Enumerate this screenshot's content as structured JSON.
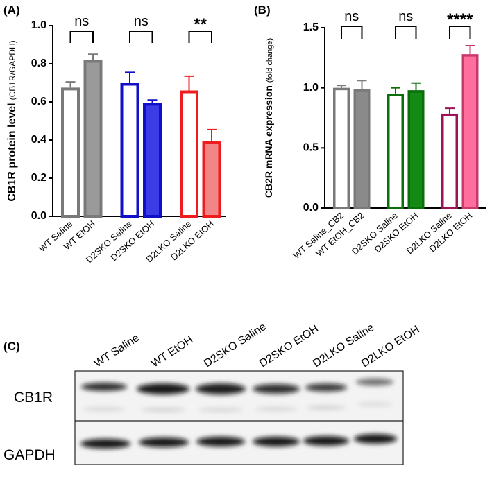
{
  "chart_data": [
    {
      "type": "bar",
      "panel_label": "(A)",
      "y_title": "CB1R protein level",
      "y_title_unit": "(CB1R/GAPDH)",
      "categories": [
        "WT Saline",
        "WT EtOH",
        "D2SKO Saline",
        "D2SKO EtOH",
        "D2LKO Saline",
        "D2LKO EtOH"
      ],
      "values": [
        0.675,
        0.82,
        0.7,
        0.595,
        0.66,
        0.395
      ],
      "errors": [
        0.03,
        0.03,
        0.055,
        0.015,
        0.075,
        0.06
      ],
      "colors": [
        "#7a7a7a",
        "#7a7a7a",
        "#1010c8",
        "#1010c8",
        "#ee1c1c",
        "#ee1c1c"
      ],
      "fill_colors": [
        "#ffffff",
        "#9a9a9a",
        "#ffffff",
        "#3c3ce6",
        "#ffffff",
        "#f28585"
      ],
      "ylim": [
        0,
        1.0
      ],
      "yticks": [
        {
          "value": 0,
          "label": "0.0"
        },
        0.2,
        0.4,
        0.6,
        0.8,
        {
          "value": 1,
          "label": "1.0"
        }
      ],
      "annotations": [
        "ns",
        "ns",
        "**"
      ]
    },
    {
      "type": "bar",
      "panel_label": "(B)",
      "y_title": "CB2R mRNA expression",
      "y_title_unit": "(fold change)",
      "categories": [
        "WT Saline_CB2",
        "WT EtOH_CB2",
        "D2SKO Saline",
        "D2SKO EtOH",
        "D2LKO Saline",
        "D2LKO EtOH"
      ],
      "values": [
        1.0,
        0.99,
        0.95,
        0.98,
        0.785,
        1.28
      ],
      "errors": [
        0.02,
        0.07,
        0.05,
        0.06,
        0.045,
        0.07
      ],
      "colors": [
        "#7a7a7a",
        "#7a7a7a",
        "#0a6e0a",
        "#0a6e0a",
        "#9a1456",
        "#c83a6e"
      ],
      "fill_colors": [
        "#ffffff",
        "#8a8a8a",
        "#ffffff",
        "#138a13",
        "#ffffff",
        "#ff6e9c"
      ],
      "ylim": [
        0,
        1.5
      ],
      "yticks": [
        {
          "value": 0,
          "label": "0.0"
        },
        0.5,
        {
          "value": 1,
          "label": "1.0"
        },
        1.5
      ],
      "annotations": [
        "ns",
        "ns",
        "****"
      ]
    }
  ],
  "blot": {
    "panel_label": "(C)",
    "lanes": [
      "WT Saline",
      "WT EtOH",
      "D2SKO Saline",
      "D2SKO EtOH",
      "D2LKO Saline",
      "D2LKO EtOH"
    ],
    "rows": [
      "CB1R",
      "GAPDH"
    ]
  }
}
